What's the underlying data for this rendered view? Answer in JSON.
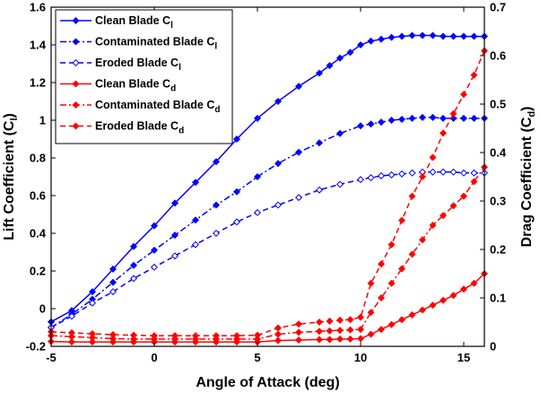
{
  "chart_data": {
    "type": "line",
    "xlabel": "Angle of Attack (deg)",
    "ylabel_left": "Lift Coefficient (C",
    "ylabel_left_sub": "l",
    "ylabel_right": "Drag Coefficient (C",
    "ylabel_right_sub": "d",
    "xlim": [
      -5,
      16
    ],
    "ylim_left": [
      -0.2,
      1.6
    ],
    "ylim_right": [
      0,
      0.7
    ],
    "xticks": [
      "-5",
      "0",
      "5",
      "10",
      "15"
    ],
    "yticks_left": [
      "-0.2",
      "0",
      "0.2",
      "0.4",
      "0.6",
      "0.8",
      "1",
      "1.2",
      "1.4",
      "1.6"
    ],
    "yticks_right": [
      "0",
      "0.1",
      "0.2",
      "0.3",
      "0.4",
      "0.5",
      "0.6",
      "0.7"
    ],
    "grid": false,
    "legend_position": "top-left",
    "series": [
      {
        "name": "Clean Blade C",
        "sub": "l",
        "axis": "left",
        "color": "#0000ff",
        "dash": "solid",
        "marker": "diamond-filled",
        "x": [
          -5,
          -4,
          -3,
          -2,
          -1,
          0,
          1,
          2,
          3,
          4,
          5,
          6,
          7,
          8,
          8.5,
          9,
          9.5,
          10,
          10.5,
          11,
          11.5,
          12,
          12.5,
          13,
          13.5,
          14,
          14.5,
          15,
          15.5,
          16
        ],
        "y": [
          -0.07,
          -0.01,
          0.09,
          0.21,
          0.33,
          0.44,
          0.56,
          0.67,
          0.78,
          0.9,
          1.01,
          1.1,
          1.18,
          1.25,
          1.29,
          1.33,
          1.36,
          1.4,
          1.42,
          1.43,
          1.44,
          1.445,
          1.45,
          1.45,
          1.45,
          1.445,
          1.445,
          1.445,
          1.445,
          1.445
        ]
      },
      {
        "name": "Contaminated Blade C",
        "sub": "l",
        "axis": "left",
        "color": "#0000ff",
        "dash": "dashdot",
        "marker": "diamond-filled",
        "x": [
          -5,
          -4,
          -3,
          -2,
          -1,
          0,
          1,
          2,
          3,
          4,
          5,
          6,
          7,
          8,
          9,
          10,
          10.5,
          11,
          11.5,
          12,
          12.5,
          13,
          13.5,
          14,
          14.5,
          15,
          15.5,
          16
        ],
        "y": [
          -0.1,
          -0.03,
          0.05,
          0.14,
          0.23,
          0.31,
          0.39,
          0.47,
          0.55,
          0.62,
          0.7,
          0.77,
          0.83,
          0.88,
          0.93,
          0.97,
          0.98,
          0.99,
          1.0,
          1.005,
          1.01,
          1.015,
          1.015,
          1.01,
          1.01,
          1.01,
          1.01,
          1.01
        ]
      },
      {
        "name": "Eroded Blade C",
        "sub": "l",
        "axis": "left",
        "color": "#0000ff",
        "dash": "dashed",
        "marker": "diamond-hollow",
        "x": [
          -5,
          -4,
          -3,
          -2,
          -1,
          0,
          1,
          2,
          3,
          4,
          5,
          6,
          7,
          8,
          9,
          10,
          10.5,
          11,
          11.5,
          12,
          12.5,
          13,
          13.5,
          14,
          14.5,
          15,
          15.5,
          16
        ],
        "y": [
          -0.1,
          -0.04,
          0.03,
          0.09,
          0.16,
          0.22,
          0.28,
          0.34,
          0.4,
          0.46,
          0.51,
          0.55,
          0.59,
          0.63,
          0.66,
          0.685,
          0.695,
          0.705,
          0.71,
          0.715,
          0.72,
          0.725,
          0.725,
          0.725,
          0.725,
          0.72,
          0.72,
          0.72
        ]
      },
      {
        "name": "Clean Blade C",
        "sub": "d",
        "axis": "right",
        "color": "#ff0000",
        "dash": "solid",
        "marker": "diamond-filled",
        "x": [
          -5,
          -4,
          -3,
          -2,
          -1,
          0,
          1,
          2,
          3,
          4,
          5,
          6,
          7,
          8,
          8.5,
          9,
          9.5,
          10,
          10.5,
          11,
          11.5,
          12,
          12.5,
          13,
          13.5,
          14,
          14.5,
          15,
          15.5,
          16
        ],
        "y": [
          0.01,
          0.009,
          0.009,
          0.009,
          0.009,
          0.009,
          0.009,
          0.009,
          0.009,
          0.009,
          0.009,
          0.012,
          0.013,
          0.014,
          0.014,
          0.015,
          0.015,
          0.016,
          0.025,
          0.035,
          0.045,
          0.055,
          0.065,
          0.075,
          0.085,
          0.095,
          0.105,
          0.118,
          0.13,
          0.15
        ]
      },
      {
        "name": "Contaminated Blade C",
        "sub": "d",
        "axis": "right",
        "color": "#ff0000",
        "dash": "dashdot",
        "marker": "diamond-filled",
        "x": [
          -5,
          -4,
          -3,
          -2,
          -1,
          0,
          1,
          2,
          3,
          4,
          5,
          6,
          7,
          8,
          8.5,
          9,
          9.5,
          10,
          10.5,
          11,
          11.5,
          12,
          12.5,
          13,
          13.5,
          14,
          14.5,
          15,
          15.5,
          16
        ],
        "y": [
          0.022,
          0.02,
          0.018,
          0.016,
          0.015,
          0.015,
          0.015,
          0.015,
          0.015,
          0.015,
          0.015,
          0.025,
          0.029,
          0.031,
          0.032,
          0.033,
          0.034,
          0.035,
          0.07,
          0.1,
          0.13,
          0.16,
          0.19,
          0.22,
          0.25,
          0.27,
          0.29,
          0.31,
          0.34,
          0.37
        ]
      },
      {
        "name": "Eroded Blade C",
        "sub": "d",
        "axis": "right",
        "color": "#ff0000",
        "dash": "dashed",
        "marker": "diamond-filled",
        "x": [
          -5,
          -4,
          -3,
          -2,
          -1,
          0,
          1,
          2,
          3,
          4,
          5,
          6,
          7,
          8,
          8.5,
          9,
          9.5,
          10,
          10.5,
          11,
          11.5,
          12,
          12.5,
          13,
          13.5,
          14,
          14.5,
          15,
          15.5,
          16
        ],
        "y": [
          0.03,
          0.028,
          0.026,
          0.024,
          0.023,
          0.022,
          0.022,
          0.022,
          0.022,
          0.022,
          0.023,
          0.038,
          0.046,
          0.05,
          0.052,
          0.054,
          0.055,
          0.06,
          0.13,
          0.17,
          0.21,
          0.26,
          0.31,
          0.35,
          0.39,
          0.44,
          0.48,
          0.52,
          0.56,
          0.61
        ]
      }
    ]
  }
}
